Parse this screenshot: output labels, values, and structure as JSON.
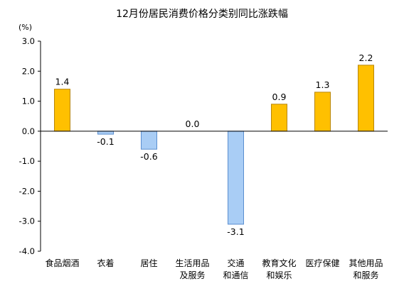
{
  "chart_data": {
    "type": "bar",
    "title": "12月份居民消费价格分类别同比涨跌幅",
    "unit_label": "(%)",
    "xlabel": "",
    "ylabel": "",
    "ylim": [
      -4.0,
      3.0
    ],
    "yticks": [
      "3.0",
      "2.0",
      "1.0",
      "0.0",
      "-1.0",
      "-2.0",
      "-3.0",
      "-4.0"
    ],
    "grid": false,
    "legend": "none",
    "categories": [
      [
        "食品烟酒"
      ],
      [
        "衣着"
      ],
      [
        "居住"
      ],
      [
        "生活用品",
        "及服务"
      ],
      [
        "交通",
        "和通信"
      ],
      [
        "教育文化",
        "和娱乐"
      ],
      [
        "医疗保健"
      ],
      [
        "其他用品",
        "和服务"
      ]
    ],
    "values": [
      1.4,
      -0.1,
      -0.6,
      0.0,
      -3.1,
      0.9,
      1.3,
      2.2
    ],
    "value_labels": [
      "1.4",
      "-0.1",
      "-0.6",
      "0.0",
      "-3.1",
      "0.9",
      "1.3",
      "2.2"
    ],
    "colors": {
      "positive_fill": "#FFC000",
      "positive_stroke": "#B8860B",
      "negative_fill": "#A9CDF5",
      "negative_stroke": "#5B8FD0",
      "axis": "#000000"
    }
  }
}
